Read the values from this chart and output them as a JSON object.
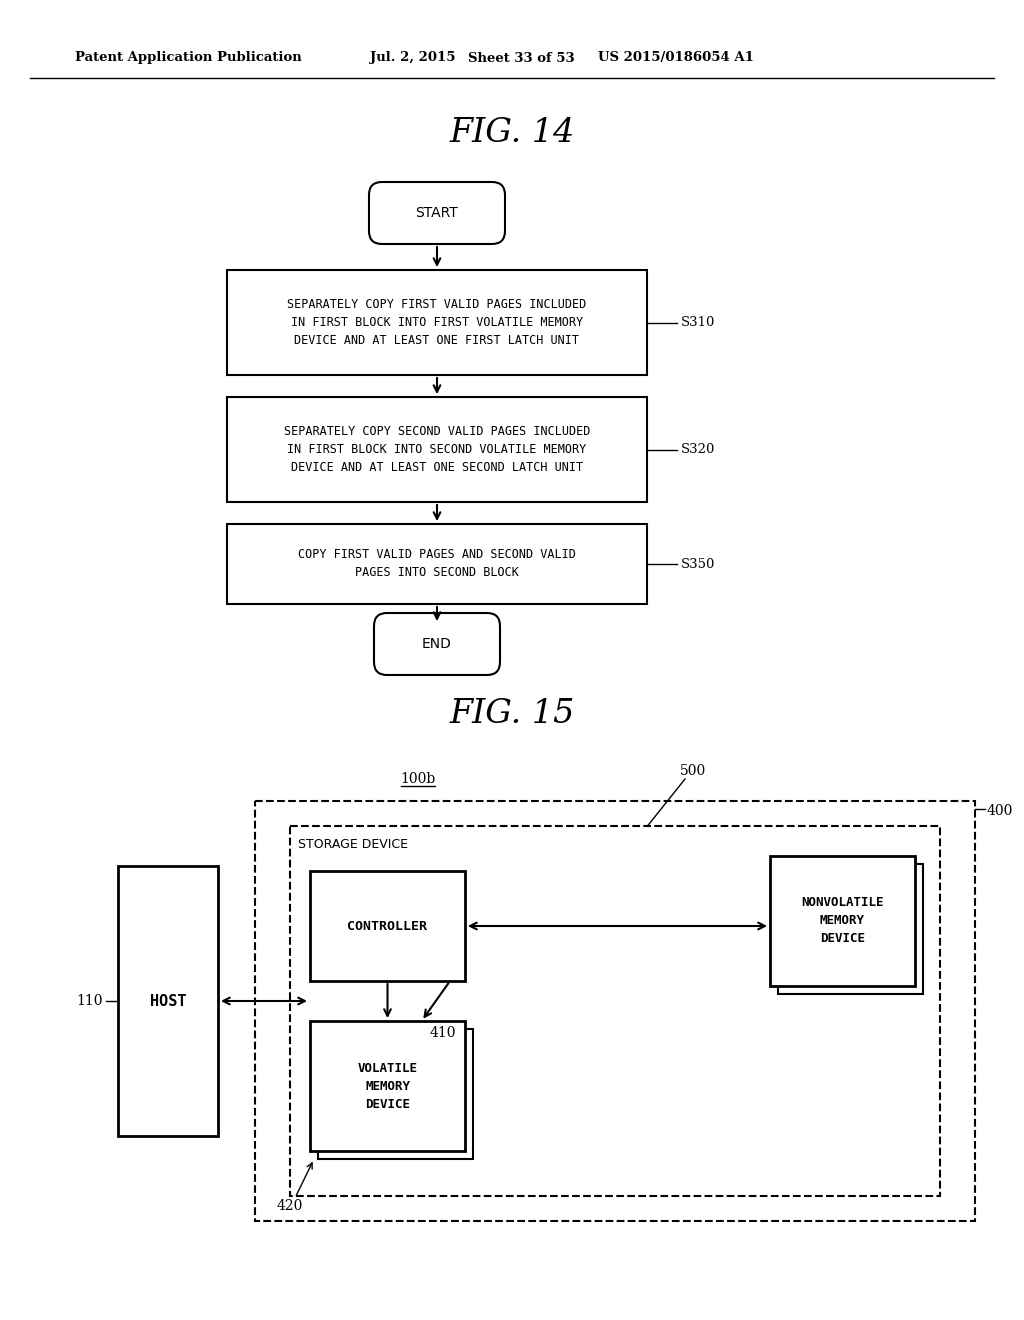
{
  "bg_color": "#ffffff",
  "header_text": "Patent Application Publication",
  "header_date": "Jul. 2, 2015",
  "header_sheet": "Sheet 33 of 53",
  "header_patent": "US 2015/0186054 A1",
  "fig14_title": "FIG. 14",
  "fig15_title": "FIG. 15",
  "start_label": "START",
  "end_label": "END",
  "box1_line1": "SEPARATELY COPY FIRST VALID PAGES INCLUDED",
  "box1_line2": "IN FIRST BLOCK INTO FIRST VOLATILE MEMORY",
  "box1_line3": "DEVICE AND AT LEAST ONE FIRST LATCH UNIT",
  "box1_label": "S310",
  "box2_line1": "SEPARATELY COPY SECOND VALID PAGES INCLUDED",
  "box2_line2": "IN FIRST BLOCK INTO SECOND VOLATILE MEMORY",
  "box2_line3": "DEVICE AND AT LEAST ONE SECOND LATCH UNIT",
  "box2_label": "S320",
  "box3_line1": "COPY FIRST VALID PAGES AND SECOND VALID",
  "box3_line2": "PAGES INTO SECOND BLOCK",
  "box3_label": "S350",
  "label_100b": "100b",
  "label_400": "400",
  "label_500": "500",
  "label_410": "410",
  "label_420": "420",
  "label_110": "110",
  "storage_device_label": "STORAGE DEVICE",
  "host_label": "HOST",
  "controller_label": "CONTROLLER",
  "nonvolatile_line1": "NONVOLATILE",
  "nonvolatile_line2": "MEMORY",
  "nonvolatile_line3": "DEVICE",
  "volatile_line1": "VOLATILE",
  "volatile_line2": "MEMORY",
  "volatile_line3": "DEVICE"
}
